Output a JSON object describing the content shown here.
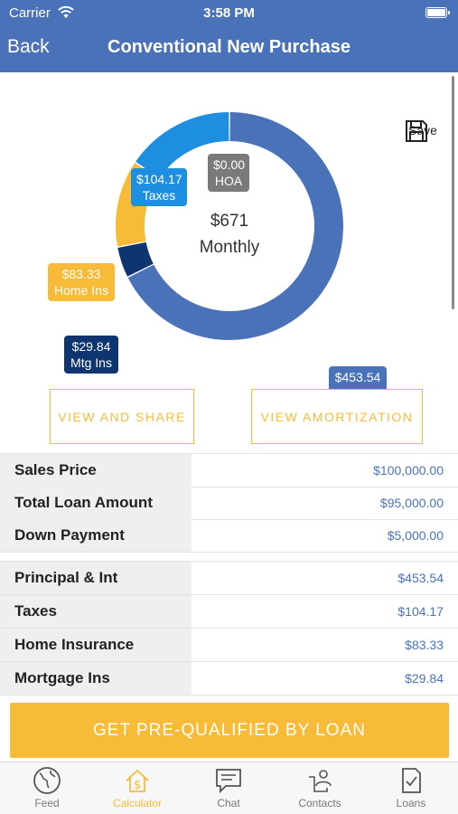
{
  "status": {
    "carrier": "Carrier",
    "time": "3:58 PM"
  },
  "nav": {
    "back": "Back",
    "title": "Conventional New Purchase"
  },
  "chart_data": {
    "type": "pie",
    "donut": true,
    "center": {
      "amount": "$671",
      "label": "Monthly"
    },
    "slices": [
      {
        "label": "P&I",
        "value": 453.54,
        "display": "$453.54",
        "color": "#4a72b8"
      },
      {
        "label": "Mtg Ins",
        "value": 29.84,
        "display": "$29.84",
        "color": "#0e3570"
      },
      {
        "label": "Home Ins",
        "value": 83.33,
        "display": "$83.33",
        "color": "#f8bb38"
      },
      {
        "label": "Taxes",
        "value": 104.17,
        "display": "$104.17",
        "color": "#1e8fe0"
      },
      {
        "label": "HOA",
        "value": 0.0,
        "display": "$0.00",
        "color": "#7a7a7a"
      }
    ]
  },
  "save_label": "Save",
  "buttons": {
    "share": "VIEW AND SHARE",
    "amortization": "VIEW AMORTIZATION"
  },
  "summary": [
    {
      "label": "Sales Price",
      "value": "$100,000.00"
    },
    {
      "label": "Total Loan Amount",
      "value": "$95,000.00"
    },
    {
      "label": "Down Payment",
      "value": "$5,000.00"
    }
  ],
  "breakdown": [
    {
      "label": "Principal & Int",
      "value": "$453.54"
    },
    {
      "label": "Taxes",
      "value": "$104.17"
    },
    {
      "label": "Home Insurance",
      "value": "$83.33"
    },
    {
      "label": "Mortgage Ins",
      "value": "$29.84"
    }
  ],
  "cta": "GET PRE-QUALIFIED BY LOAN",
  "tabs": [
    {
      "label": "Feed",
      "icon": "globe-icon"
    },
    {
      "label": "Calculator",
      "icon": "house-dollar-icon",
      "active": true
    },
    {
      "label": "Chat",
      "icon": "chat-icon"
    },
    {
      "label": "Contacts",
      "icon": "contacts-icon"
    },
    {
      "label": "Loans",
      "icon": "document-check-icon"
    }
  ],
  "colors": {
    "brand": "#4a72b8",
    "accent": "#f8bb38"
  }
}
